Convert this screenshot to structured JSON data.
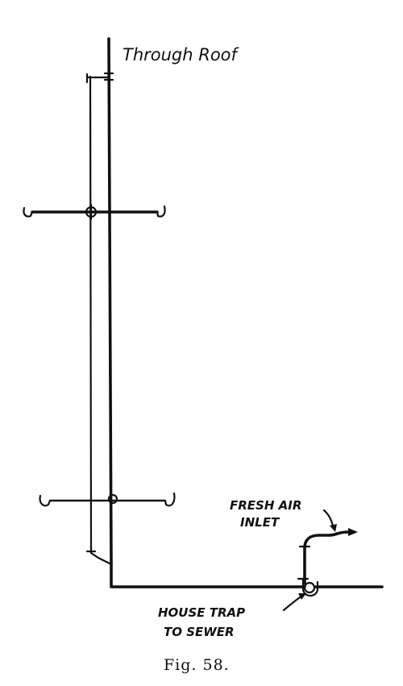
{
  "labels": {
    "through_roof": "Through Roof",
    "fresh_air_line1": "FRESH AIR",
    "fresh_air_line2": "INLET",
    "house_trap_line1": "HOUSE TRAP",
    "house_trap_line2": "TO SEWER"
  },
  "caption": "Fig. 58."
}
